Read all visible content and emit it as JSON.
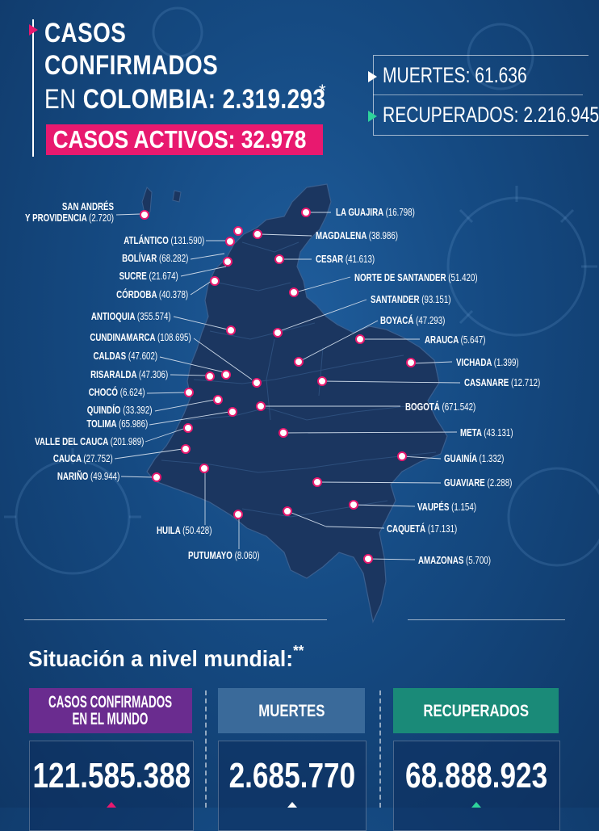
{
  "header": {
    "line1": "CASOS",
    "line2": "CONFIRMADOS",
    "line3_prefix": "EN ",
    "line3_main": "COLOMBIA: 2.319.293",
    "asterisk": "*",
    "active_cases": "CASOS ACTIVOS: 32.978"
  },
  "stats": {
    "deaths": "MUERTES: 61.636",
    "recovered": "RECUPERADOS: 2.216.945"
  },
  "departments": [
    {
      "name": "SAN ANDRÉS",
      "name2": "Y PROVIDENCIA",
      "value": "(2.720)"
    },
    {
      "name": "ATLÁNTICO",
      "value": "(131.590)"
    },
    {
      "name": "BOLÍVAR",
      "value": "(68.282)"
    },
    {
      "name": "SUCRE",
      "value": "(21.674)"
    },
    {
      "name": "CÓRDOBA",
      "value": "(40.378)"
    },
    {
      "name": "ANTIOQUIA",
      "value": "(355.574)"
    },
    {
      "name": "CUNDINAMARCA",
      "value": "(108.695)"
    },
    {
      "name": "CALDAS",
      "value": "(47.602)"
    },
    {
      "name": "RISARALDA",
      "value": "(47.306)"
    },
    {
      "name": "CHOCÓ",
      "value": "(6.624)"
    },
    {
      "name": "QUINDÍO",
      "value": "(33.392)"
    },
    {
      "name": "TOLIMA",
      "value": "(65.986)"
    },
    {
      "name": "VALLE DEL CAUCA",
      "value": "(201.989)"
    },
    {
      "name": "CAUCA",
      "value": "(27.752)"
    },
    {
      "name": "NARIÑO",
      "value": "(49.944)"
    },
    {
      "name": "HUILA",
      "value": "(50.428)"
    },
    {
      "name": "PUTUMAYO",
      "value": "(8.060)"
    },
    {
      "name": "LA GUAJIRA",
      "value": "(16.798)"
    },
    {
      "name": "MAGDALENA",
      "value": "(38.986)"
    },
    {
      "name": "CESAR",
      "value": "(41.613)"
    },
    {
      "name": "NORTE DE SANTANDER",
      "value": "(51.420)"
    },
    {
      "name": "SANTANDER",
      "value": "(93.151)"
    },
    {
      "name": "BOYACÁ",
      "value": "(47.293)"
    },
    {
      "name": "ARAUCA",
      "value": "(5.647)"
    },
    {
      "name": "VICHADA",
      "value": "(1.399)"
    },
    {
      "name": "CASANARE",
      "value": "(12.712)"
    },
    {
      "name": "BOGOTÁ",
      "value": "(671.542)"
    },
    {
      "name": "META",
      "value": "(43.131)"
    },
    {
      "name": "GUAINÍA",
      "value": "(1.332)"
    },
    {
      "name": "GUAVIARE",
      "value": "(2.288)"
    },
    {
      "name": "VAUPÉS",
      "value": "(1.154)"
    },
    {
      "name": "CAQUETÁ",
      "value": "(17.131)"
    },
    {
      "name": "AMAZONAS",
      "value": "(5.700)"
    }
  ],
  "world": {
    "title": "Situación a nivel mundial:",
    "title_mark": "**",
    "cards": [
      {
        "label1": "CASOS CONFIRMADOS",
        "label2": "EN EL MUNDO",
        "value": "121.585.388"
      },
      {
        "label1": "MUERTES",
        "label2": "",
        "value": "2.685.770"
      },
      {
        "label1": "RECUPERADOS",
        "label2": "",
        "value": "68.888.923"
      }
    ]
  },
  "colors": {
    "accent_pink": "#e8196f",
    "purple": "#6a2c8f",
    "steel_blue": "#3a6a9a",
    "teal": "#1a8a78",
    "map_fill": "#1b3660",
    "background": "#154a82"
  }
}
